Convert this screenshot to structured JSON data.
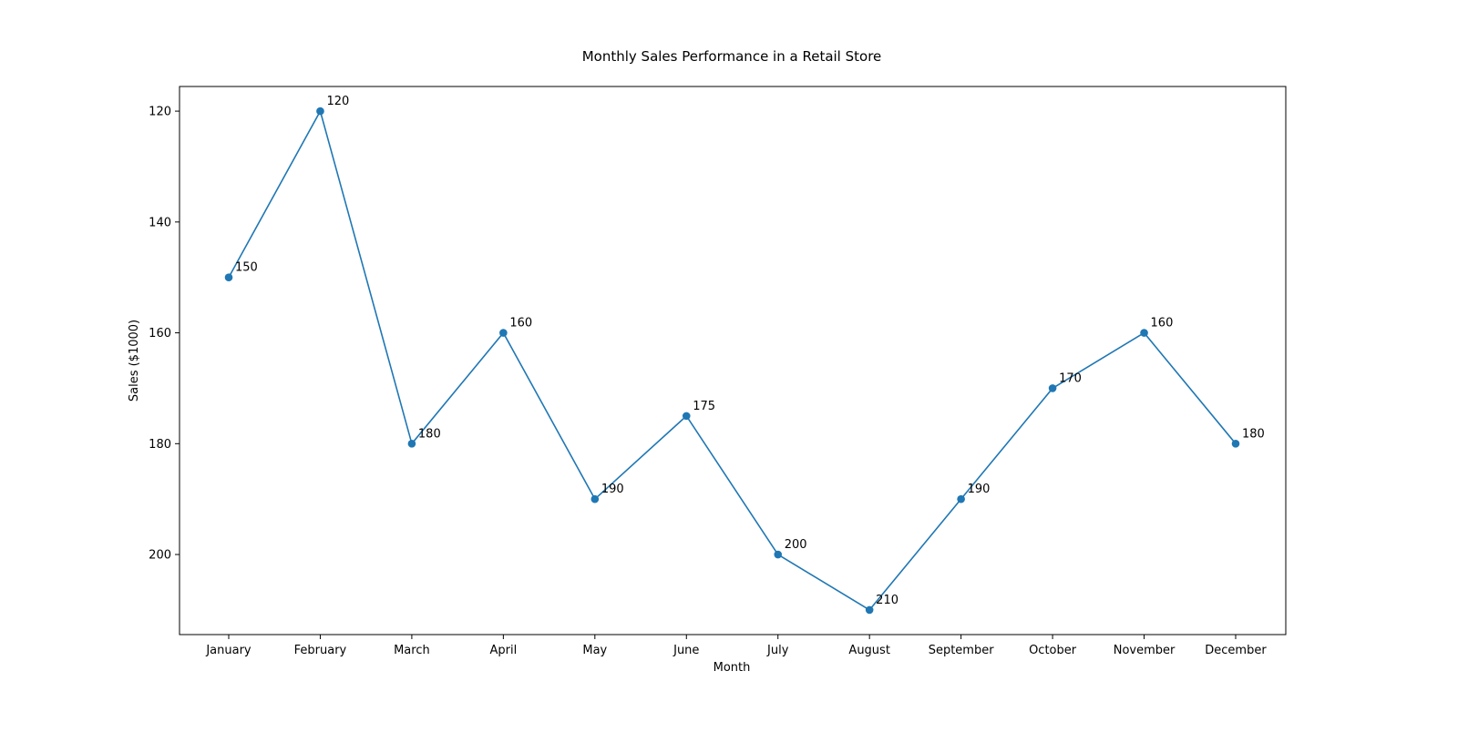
{
  "chart_data": {
    "type": "line",
    "title": "Monthly Sales Performance in a Retail Store",
    "xlabel": "Month",
    "ylabel": "Sales ($1000)",
    "categories": [
      "January",
      "February",
      "March",
      "April",
      "May",
      "June",
      "July",
      "August",
      "September",
      "October",
      "November",
      "December"
    ],
    "series": [
      {
        "values": [
          150,
          120,
          180,
          160,
          190,
          175,
          200,
          210,
          190,
          170,
          160,
          180
        ],
        "color": "#1f77b4",
        "marker": "circle"
      }
    ],
    "y_axis": {
      "inverted": true,
      "range": [
        115.55,
        214.45
      ],
      "ticks": [
        120,
        140,
        160,
        180,
        200
      ]
    },
    "data_labels": [
      "150",
      "120",
      "180",
      "160",
      "190",
      "175",
      "200",
      "210",
      "190",
      "170",
      "160",
      "180"
    ],
    "grid": false,
    "legend": "none"
  }
}
